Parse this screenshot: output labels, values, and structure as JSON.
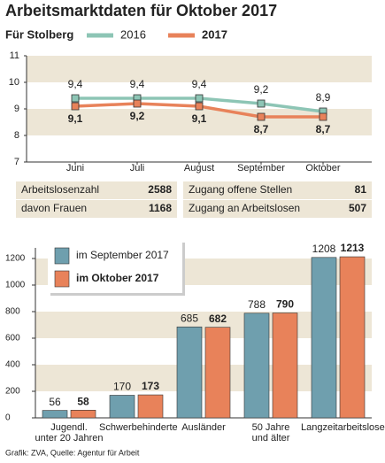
{
  "title": "Arbeitsmarktdaten für Oktober 2017",
  "chart_data": [
    {
      "type": "line",
      "legend_title": "Für Stolberg",
      "categories": [
        "Juni",
        "Juli",
        "August",
        "September",
        "Oktober"
      ],
      "series": [
        {
          "name": "2016",
          "color": "#8dc5b5",
          "values": [
            9.4,
            9.4,
            9.4,
            9.2,
            8.9
          ],
          "value_labels": [
            "9,4",
            "9,4",
            "9,4",
            "9,2",
            "8,9"
          ]
        },
        {
          "name": "2017",
          "color": "#e8825a",
          "values": [
            9.1,
            9.2,
            9.1,
            8.7,
            8.7
          ],
          "value_labels": [
            "9,1",
            "9,2",
            "9,1",
            "8,7",
            "8,7"
          ]
        }
      ],
      "ylim": [
        7,
        11
      ],
      "yticks": [
        7,
        8,
        9,
        10,
        11
      ]
    },
    {
      "type": "bar",
      "categories": [
        "Jugendl.\nunter 20 Jahren",
        "Schwerbehinderte",
        "Ausländer",
        "50 Jahre\nund älter",
        "Langzeitarbeitslose"
      ],
      "series": [
        {
          "name": "im September 2017",
          "color": "#6f9fae",
          "values": [
            56,
            170,
            685,
            788,
            1208
          ]
        },
        {
          "name": "im Oktober 2017",
          "color": "#e8825a",
          "values": [
            58,
            173,
            682,
            790,
            1213
          ]
        }
      ],
      "ylim": [
        0,
        1280
      ],
      "yticks": [
        0,
        200,
        400,
        600,
        800,
        1000,
        1200
      ]
    }
  ],
  "table": {
    "left": [
      [
        "Arbeitslosenzahl",
        2588
      ],
      [
        "davon Frauen",
        1168
      ]
    ],
    "right": [
      [
        "Zugang offene Stellen",
        81
      ],
      [
        "Zugang an Arbeitslosen",
        507
      ]
    ]
  },
  "source": "Grafik: ZVA, Quelle: Agentur für Arbeit"
}
